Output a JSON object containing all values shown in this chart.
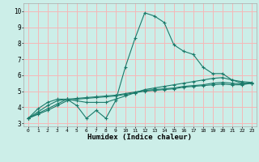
{
  "title": "",
  "xlabel": "Humidex (Indice chaleur)",
  "ylabel": "",
  "background_color": "#cceee8",
  "grid_color": "#f5b8b8",
  "line_color": "#1a7a6a",
  "xlim": [
    -0.5,
    23.5
  ],
  "ylim": [
    2.8,
    10.5
  ],
  "xticks": [
    0,
    1,
    2,
    3,
    4,
    5,
    6,
    7,
    8,
    9,
    10,
    11,
    12,
    13,
    14,
    15,
    16,
    17,
    18,
    19,
    20,
    21,
    22,
    23
  ],
  "yticks": [
    3,
    4,
    5,
    6,
    7,
    8,
    9,
    10
  ],
  "line1_x": [
    0,
    1,
    2,
    3,
    4,
    5,
    6,
    7,
    8,
    9,
    10,
    11,
    12,
    13,
    14,
    15,
    16,
    17,
    18,
    19,
    20,
    21,
    22,
    23
  ],
  "line1_y": [
    3.3,
    3.9,
    4.3,
    4.5,
    4.5,
    4.1,
    3.3,
    3.8,
    3.3,
    4.4,
    6.5,
    8.3,
    9.9,
    9.7,
    9.3,
    7.9,
    7.5,
    7.3,
    6.5,
    6.1,
    6.1,
    5.7,
    5.5,
    5.5
  ],
  "line2_x": [
    0,
    1,
    2,
    3,
    4,
    5,
    6,
    7,
    8,
    9,
    10,
    11,
    12,
    13,
    14,
    15,
    16,
    17,
    18,
    19,
    20,
    21,
    22,
    23
  ],
  "line2_y": [
    3.3,
    3.7,
    4.1,
    4.4,
    4.5,
    4.4,
    4.3,
    4.3,
    4.3,
    4.5,
    4.7,
    4.9,
    5.1,
    5.2,
    5.3,
    5.4,
    5.5,
    5.6,
    5.7,
    5.8,
    5.85,
    5.7,
    5.6,
    5.55
  ],
  "line3_x": [
    0,
    1,
    2,
    3,
    4,
    5,
    6,
    7,
    8,
    9,
    10,
    11,
    12,
    13,
    14,
    15,
    16,
    17,
    18,
    19,
    20,
    21,
    22,
    23
  ],
  "line3_y": [
    3.3,
    3.6,
    3.9,
    4.2,
    4.5,
    4.55,
    4.6,
    4.65,
    4.7,
    4.75,
    4.85,
    4.95,
    5.05,
    5.1,
    5.15,
    5.2,
    5.3,
    5.35,
    5.4,
    5.5,
    5.55,
    5.5,
    5.45,
    5.5
  ],
  "line4_x": [
    0,
    1,
    2,
    3,
    4,
    5,
    6,
    7,
    8,
    9,
    10,
    11,
    12,
    13,
    14,
    15,
    16,
    17,
    18,
    19,
    20,
    21,
    22,
    23
  ],
  "line4_y": [
    3.3,
    3.55,
    3.8,
    4.1,
    4.4,
    4.5,
    4.55,
    4.6,
    4.65,
    4.7,
    4.8,
    4.9,
    5.0,
    5.05,
    5.1,
    5.15,
    5.25,
    5.3,
    5.35,
    5.4,
    5.45,
    5.4,
    5.4,
    5.5
  ]
}
